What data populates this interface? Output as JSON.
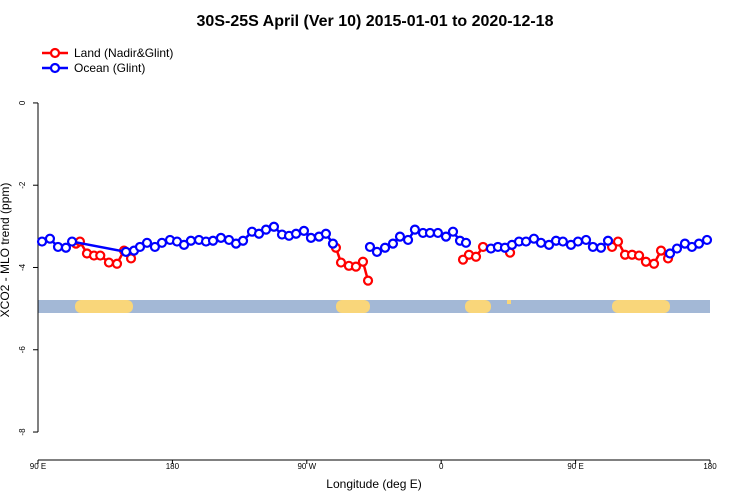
{
  "chart_data": {
    "type": "line",
    "title": "30S-25S April (Ver 10)   2015-01-01 to 2020-12-18",
    "x_label": "Longitude (deg E)",
    "y_label": "XCO2 - MLO trend (ppm)",
    "xlim": [
      90,
      540
    ],
    "ylim": [
      -8.68,
      1.53
    ],
    "xticks": [
      {
        "value": 90,
        "label": "90 E"
      },
      180,
      {
        "value": 270,
        "label": "90 W"
      },
      {
        "value": 360,
        "label": "0"
      },
      {
        "value": 450,
        "label": "90 E"
      },
      {
        "value": 540,
        "label": "180"
      }
    ],
    "yticks": [
      0,
      -2,
      -4,
      -6,
      -8
    ],
    "legend": "top-left",
    "series": [
      {
        "name": "Land (Nadir&Glint)",
        "color": "#ff0000",
        "x": [
          115.4,
          118.1,
          122.8,
          127.5,
          131.7,
          137.5,
          142.9,
          147.6,
          152.3,
          null,
          289.5,
          292.9,
          298.2,
          302.9,
          307.6,
          311.0,
          null,
          374.6,
          378.6,
          383.3,
          388.0,
          null,
          406.1,
          null,
          474.4,
          478.4,
          483.1,
          487.8,
          492.5,
          497.1,
          502.5,
          507.2,
          511.9
        ],
        "values": [
          -3.42,
          -3.37,
          -3.66,
          -3.71,
          -3.71,
          -3.88,
          -3.91,
          -3.59,
          -3.78,
          null,
          -3.52,
          -3.88,
          -3.96,
          -3.98,
          -3.86,
          -4.32,
          null,
          -3.81,
          -3.69,
          -3.74,
          -3.5,
          null,
          -3.64,
          null,
          -3.5,
          -3.37,
          -3.69,
          -3.69,
          -3.71,
          -3.86,
          -3.91,
          -3.59,
          -3.78
        ]
      },
      {
        "name": "Ocean (Glint)",
        "color": "#0000ff",
        "x": [
          92.7,
          98.0,
          103.4,
          108.7,
          112.8,
          148.9,
          154.3,
          158.3,
          163.0,
          168.3,
          173.0,
          178.4,
          183.1,
          187.8,
          192.4,
          197.8,
          202.5,
          207.2,
          212.5,
          217.9,
          222.6,
          227.3,
          233.3,
          238.0,
          242.7,
          248.0,
          253.4,
          258.1,
          262.8,
          268.1,
          272.8,
          278.2,
          282.8,
          287.5,
          null,
          312.3,
          317.0,
          322.4,
          327.7,
          332.4,
          337.8,
          342.4,
          347.8,
          352.5,
          357.8,
          363.2,
          367.9,
          372.6,
          376.6,
          null,
          393.3,
          398.0,
          402.7,
          407.4,
          412.1,
          416.8,
          422.1,
          426.8,
          432.2,
          436.9,
          441.5,
          446.9,
          451.6,
          457.0,
          461.6,
          467.0,
          471.7,
          null,
          513.2,
          517.9,
          523.2,
          527.9,
          532.6,
          538.0
        ],
        "values": [
          -3.37,
          -3.3,
          -3.5,
          -3.52,
          -3.37,
          -3.62,
          -3.59,
          -3.5,
          -3.4,
          -3.5,
          -3.4,
          -3.33,
          -3.37,
          -3.45,
          -3.35,
          -3.33,
          -3.37,
          -3.35,
          -3.28,
          -3.33,
          -3.42,
          -3.35,
          -3.13,
          -3.18,
          -3.08,
          -3.01,
          -3.2,
          -3.23,
          -3.18,
          -3.11,
          -3.28,
          -3.25,
          -3.18,
          -3.42,
          null,
          -3.5,
          -3.62,
          -3.52,
          -3.42,
          -3.25,
          -3.33,
          -3.08,
          -3.16,
          -3.16,
          -3.16,
          -3.25,
          -3.13,
          -3.35,
          -3.4,
          null,
          -3.54,
          -3.5,
          -3.52,
          -3.45,
          -3.37,
          -3.37,
          -3.3,
          -3.4,
          -3.45,
          -3.35,
          -3.37,
          -3.45,
          -3.37,
          -3.33,
          -3.5,
          -3.52,
          -3.35,
          null,
          -3.66,
          -3.54,
          -3.42,
          -3.5,
          -3.42,
          -3.33
        ]
      }
    ]
  }
}
